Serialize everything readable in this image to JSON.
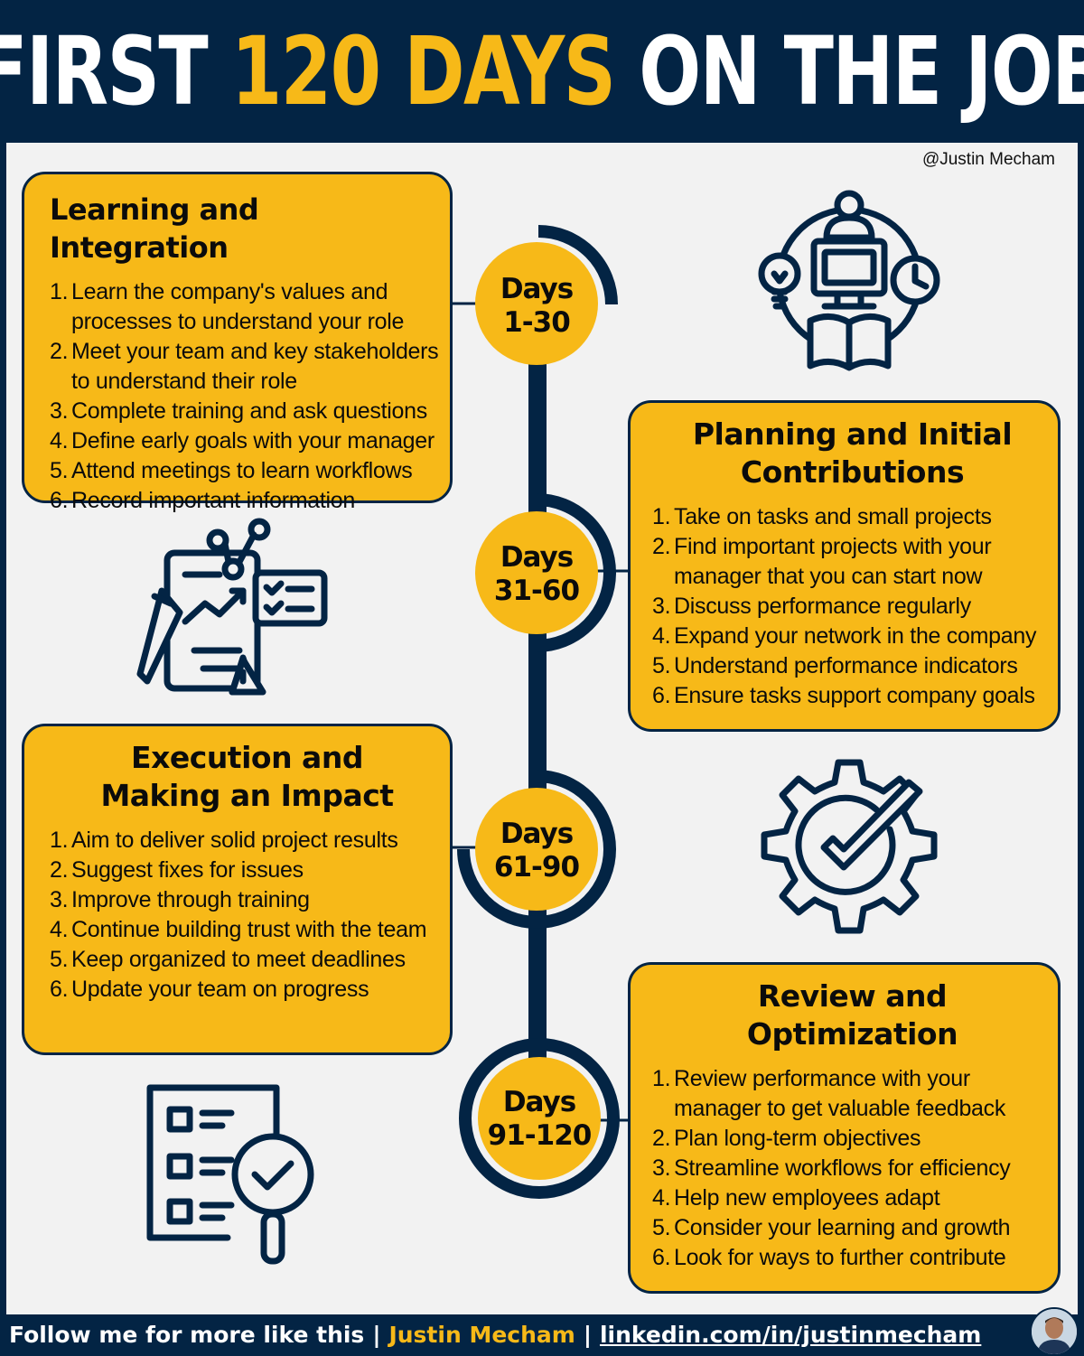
{
  "header": {
    "title_part1": "FIRST",
    "title_highlight": "120 DAYS",
    "title_part2": "ON THE JOB"
  },
  "credit": "@Justin Mecham",
  "phases": [
    {
      "days_label": "Days",
      "days_range": "1-30",
      "title": "Learning and Integration",
      "items": [
        {
          "num": "1.",
          "text": "Learn the company's values and processes to understand your role"
        },
        {
          "num": "2.",
          "text": "Meet your team and key stakeholders to understand their role"
        },
        {
          "num": "3.",
          "text": "Complete training and ask questions"
        },
        {
          "num": "4.",
          "text": "Define early goals with your manager"
        },
        {
          "num": "5.",
          "text": "Attend meetings to learn workflows"
        },
        {
          "num": "6.",
          "text": "Record important information"
        }
      ]
    },
    {
      "days_label": "Days",
      "days_range": "31-60",
      "title": "Planning and Initial Contributions",
      "items": [
        {
          "num": "1.",
          "text": "Take on tasks and small projects"
        },
        {
          "num": "2.",
          "text": "Find important projects with your manager that you can start now"
        },
        {
          "num": "3.",
          "text": "Discuss performance regularly"
        },
        {
          "num": "4.",
          "text": "Expand your network in the company"
        },
        {
          "num": "5.",
          "text": "Understand performance indicators"
        },
        {
          "num": "6.",
          "text": "Ensure tasks support company goals"
        }
      ]
    },
    {
      "days_label": "Days",
      "days_range": "61-90",
      "title": "Execution and Making an Impact",
      "items": [
        {
          "num": "1.",
          "text": "Aim to deliver solid project results"
        },
        {
          "num": "2.",
          "text": "Suggest fixes for issues"
        },
        {
          "num": "3.",
          "text": "Improve through training"
        },
        {
          "num": "4.",
          "text": "Continue building trust with the team"
        },
        {
          "num": "5.",
          "text": "Keep organized to meet deadlines"
        },
        {
          "num": "6.",
          "text": "Update your team on progress"
        }
      ]
    },
    {
      "days_label": "Days",
      "days_range": "91-120",
      "title": "Review and Optimization",
      "items": [
        {
          "num": "1.",
          "text": "Review performance with your manager to get valuable feedback"
        },
        {
          "num": "2.",
          "text": "Plan long-term objectives"
        },
        {
          "num": "3.",
          "text": "Streamline workflows for efficiency"
        },
        {
          "num": "4.",
          "text": "Help new employees adapt"
        },
        {
          "num": "5.",
          "text": "Consider your learning and growth"
        },
        {
          "num": "6.",
          "text": "Look for ways to further contribute"
        }
      ]
    }
  ],
  "icons": [
    "learning-computer-icon",
    "report-checklist-icon",
    "gear-check-icon",
    "checklist-magnifier-icon"
  ],
  "footer": {
    "prefix": "Follow me for more like this",
    "separator": "|",
    "name": "Justin Mecham",
    "link": "linkedin.com/in/justinmecham"
  },
  "colors": {
    "navy": "#032444",
    "yellow": "#f7b918",
    "panel": "#f2f2f2"
  }
}
